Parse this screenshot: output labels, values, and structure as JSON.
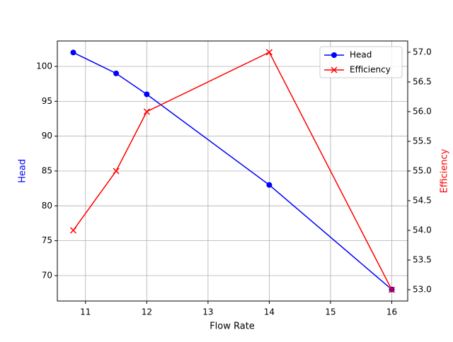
{
  "chart_data": {
    "type": "line",
    "x_label": "Flow Rate",
    "y_label": "Head",
    "y2_label": "Efficiency",
    "x": [
      10.8,
      11.5,
      12,
      14,
      16
    ],
    "series": [
      {
        "name": "Head",
        "color": "#0000ff",
        "marker": "o",
        "values": [
          102,
          99,
          96,
          83,
          68
        ]
      },
      {
        "name": "Efficiency",
        "color": "#ff0000",
        "marker": "x",
        "axis": "y2",
        "values": [
          54,
          55,
          56,
          57,
          53
        ]
      }
    ],
    "xlim": [
      10.54,
      16.26
    ],
    "xticks": [
      11,
      12,
      13,
      14,
      15,
      16
    ],
    "ylim": [
      66.35,
      103.65
    ],
    "yticks": [
      70,
      75,
      80,
      85,
      90,
      95,
      100
    ],
    "y2lim": [
      52.81,
      57.19
    ],
    "y2ticks": [
      {
        "value": 53,
        "label": "53.0"
      },
      {
        "value": 53.5,
        "label": "53.5"
      },
      {
        "value": 54,
        "label": "54.0"
      },
      {
        "value": 54.5,
        "label": "54.5"
      },
      {
        "value": 55,
        "label": "55.0"
      },
      {
        "value": 55.5,
        "label": "55.5"
      },
      {
        "value": 56,
        "label": "56.0"
      },
      {
        "value": 56.5,
        "label": "56.5"
      },
      {
        "value": 57,
        "label": "57.0"
      }
    ],
    "grid": true,
    "legend": "upper right"
  }
}
